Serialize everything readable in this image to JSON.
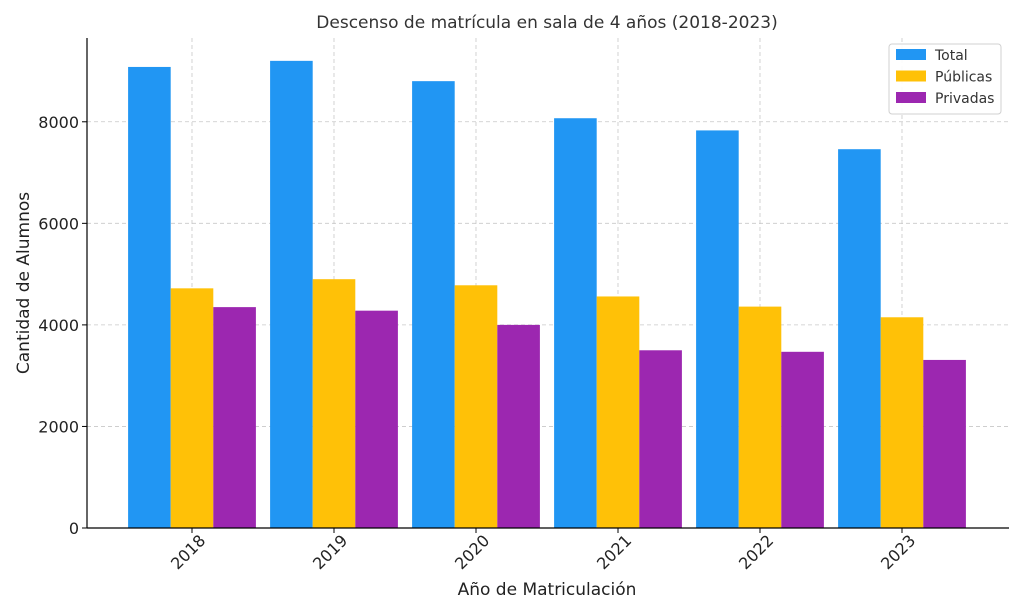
{
  "chart_data": {
    "type": "bar",
    "title": "Descenso de matrícula en sala de 4 años (2018-2023)",
    "xlabel": "Año de Matriculación",
    "ylabel": "Cantidad de Alumnos",
    "categories": [
      "2018",
      "2019",
      "2020",
      "2021",
      "2022",
      "2023"
    ],
    "series": [
      {
        "name": "Total",
        "color": "#2196f3",
        "values": [
          9080,
          9200,
          8800,
          8070,
          7830,
          7460
        ]
      },
      {
        "name": "Públicas",
        "color": "#ffc107",
        "values": [
          4720,
          4900,
          4780,
          4560,
          4360,
          4150
        ]
      },
      {
        "name": "Privadas",
        "color": "#9c27b0",
        "values": [
          4350,
          4280,
          4000,
          3500,
          3470,
          3310
        ]
      }
    ],
    "ylim": [
      0,
      9650
    ],
    "yticks": [
      0,
      2000,
      4000,
      6000,
      8000
    ],
    "ytick_labels": [
      "0",
      "2000",
      "4000",
      "6000",
      "8000"
    ],
    "grid": true,
    "legend_position": "top-right"
  }
}
